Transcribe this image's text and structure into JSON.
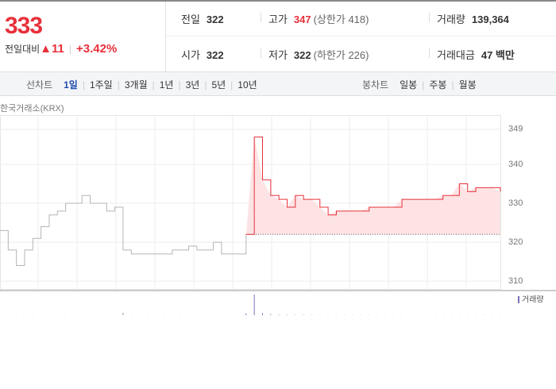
{
  "quote": {
    "price": "333",
    "change_label": "전일대비",
    "change": "11",
    "change_pct": "+3.42%"
  },
  "stats": [
    [
      {
        "label": "전일",
        "value": "322"
      },
      {
        "label": "고가",
        "value": "347",
        "note": "(상한가 418)"
      },
      {
        "label": "거래량",
        "value": "139,364"
      }
    ],
    [
      {
        "label": "시가",
        "value": "322"
      },
      {
        "label": "저가",
        "value": "322",
        "note": "(하한가 226)"
      },
      {
        "label": "거래대금",
        "value": "47 백만"
      }
    ]
  ],
  "tabs": {
    "line_label": "선차트",
    "line_items": [
      "1일",
      "1주일",
      "3개월",
      "1년",
      "3년",
      "5년",
      "10년"
    ],
    "candle_label": "봉차트",
    "candle_items": [
      "일봉",
      "주봉",
      "월봉"
    ]
  },
  "chart_data": {
    "type": "line",
    "source": "한국거래소(KRX)",
    "categories": [
      null,
      null,
      null,
      null,
      null,
      null,
      null,
      null,
      null,
      null,
      null,
      null,
      null,
      null,
      null,
      null,
      null,
      null,
      null,
      null,
      null,
      null,
      null,
      null,
      null,
      null,
      null,
      null,
      null,
      null,
      null,
      null,
      null,
      null,
      null,
      null,
      null,
      null,
      null,
      null,
      null,
      null,
      null,
      null,
      null,
      null,
      null,
      null,
      null,
      null,
      null,
      null,
      null,
      null,
      null,
      null,
      null,
      null,
      null,
      null,
      null,
      null
    ],
    "series": [
      {
        "color": "#b5b5b5",
        "values": [
          323,
          318,
          314,
          318,
          321,
          324,
          327,
          328,
          330,
          330,
          332,
          330,
          330,
          328,
          329,
          318,
          317,
          317,
          317,
          317,
          317,
          318,
          318,
          319,
          318,
          318,
          320,
          317,
          317,
          317,
          322,
          null,
          null,
          null,
          null,
          null,
          null,
          null,
          null,
          null,
          null,
          null,
          null,
          null,
          null,
          null,
          null,
          null,
          null,
          null,
          null,
          null,
          null,
          null,
          null,
          null,
          null,
          null,
          null,
          null,
          null,
          null
        ]
      },
      {
        "color": "#e8303a",
        "values": [
          null,
          null,
          null,
          null,
          null,
          null,
          null,
          null,
          null,
          null,
          null,
          null,
          null,
          null,
          null,
          null,
          null,
          null,
          null,
          null,
          null,
          null,
          null,
          null,
          null,
          null,
          null,
          null,
          null,
          null,
          322,
          347,
          336,
          332,
          331,
          329,
          332,
          331,
          331,
          329,
          327,
          328,
          328,
          328,
          328,
          329,
          329,
          329,
          329,
          331,
          331,
          331,
          331,
          331,
          332,
          332,
          335,
          333,
          334,
          334,
          334,
          333
        ]
      }
    ],
    "baseline": 322,
    "ylim": [
      308,
      351
    ],
    "yticks": [
      310,
      320,
      330,
      340,
      349
    ],
    "grid": true,
    "volume": {
      "name": "거래량",
      "color": "#7d72b8",
      "values": [
        300,
        200,
        300,
        200,
        300,
        200,
        300,
        200,
        400,
        200,
        300,
        200,
        300,
        200,
        300,
        3500,
        300,
        200,
        300,
        200,
        300,
        200,
        300,
        200,
        300,
        200,
        300,
        200,
        300,
        200,
        2500,
        30000,
        3000,
        1500,
        800,
        600,
        500,
        500,
        400,
        400,
        300,
        300,
        300,
        300,
        300,
        300,
        300,
        300,
        300,
        300,
        300,
        300,
        300,
        300,
        300,
        300,
        300,
        300,
        300,
        300,
        300,
        300
      ]
    }
  }
}
